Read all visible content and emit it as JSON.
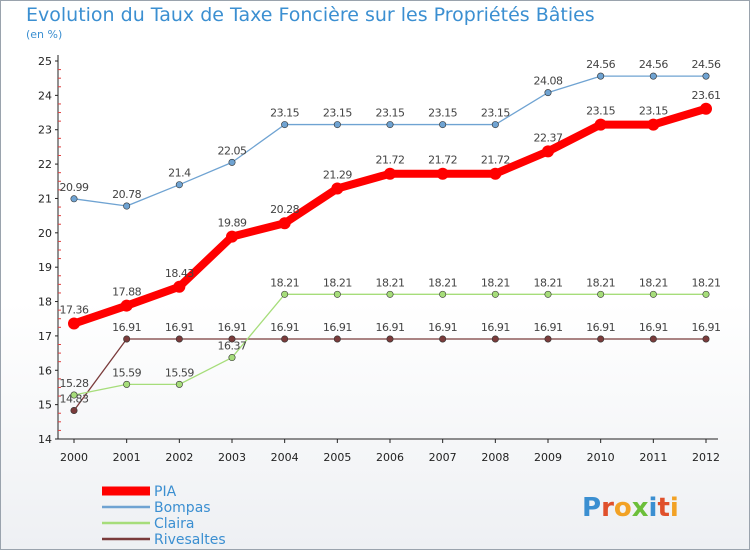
{
  "title": "Evolution du Taux de Taxe Foncière sur les Propriétés Bâties",
  "unit": "(en %)",
  "logo": "Proxiti",
  "chart_data": {
    "type": "line",
    "x": [
      "2000",
      "2001",
      "2002",
      "2003",
      "2004",
      "2005",
      "2006",
      "2007",
      "2008",
      "2009",
      "2010",
      "2011",
      "2012"
    ],
    "ylim": [
      14,
      25
    ],
    "yticks": [
      "14",
      "15",
      "16",
      "17",
      "18",
      "19",
      "20",
      "21",
      "22",
      "23",
      "24",
      "25"
    ],
    "grid": false,
    "legend_position": "bottom-left",
    "series": [
      {
        "name": "PIA",
        "color": "#ff0000",
        "values": [
          17.36,
          17.88,
          18.43,
          19.89,
          20.28,
          21.29,
          21.72,
          21.72,
          21.72,
          22.37,
          23.15,
          23.15,
          23.61
        ],
        "labels": [
          "17.36",
          "17.88",
          "18.43",
          "19.89",
          "20.28",
          "21.29",
          "21.72",
          "21.72",
          "21.72",
          "22.37",
          "23.15",
          "23.15",
          "23.61"
        ]
      },
      {
        "name": "Bompas",
        "color": "#6fa3d2",
        "values": [
          20.99,
          20.78,
          21.4,
          22.05,
          23.15,
          23.15,
          23.15,
          23.15,
          23.15,
          24.08,
          24.56,
          24.56,
          24.56
        ],
        "labels": [
          "20.99",
          "20.78",
          "21.4",
          "22.05",
          "23.15",
          "23.15",
          "23.15",
          "23.15",
          "23.15",
          "24.08",
          "24.56",
          "24.56",
          "24.56"
        ]
      },
      {
        "name": "Claira",
        "color": "#a6dd7a",
        "values": [
          15.28,
          15.59,
          15.59,
          16.37,
          18.21,
          18.21,
          18.21,
          18.21,
          18.21,
          18.21,
          18.21,
          18.21,
          18.21
        ],
        "labels": [
          "15.28",
          "15.59",
          "15.59",
          "16.37",
          "18.21",
          "18.21",
          "18.21",
          "18.21",
          "18.21",
          "18.21",
          "18.21",
          "18.21",
          "18.21"
        ]
      },
      {
        "name": "Rivesaltes",
        "color": "#7a3b3b",
        "values": [
          14.83,
          16.91,
          16.91,
          16.91,
          16.91,
          16.91,
          16.91,
          16.91,
          16.91,
          16.91,
          16.91,
          16.91,
          16.91
        ],
        "labels": [
          "14.83",
          "16.91",
          "16.91",
          "16.91",
          "16.91",
          "16.91",
          "16.91",
          "16.91",
          "16.91",
          "16.91",
          "16.91",
          "16.91",
          "16.91"
        ]
      }
    ]
  }
}
